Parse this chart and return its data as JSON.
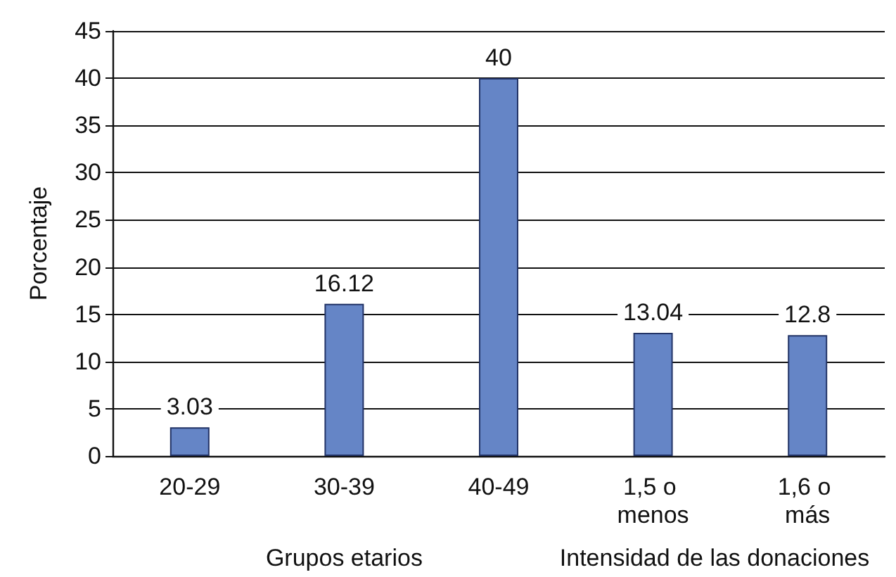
{
  "chart_data": {
    "type": "bar",
    "ylabel": "Porcentaje",
    "categories": [
      "20-29",
      "30-39",
      "40-49",
      "1,5 o menos",
      "1,6 o más"
    ],
    "values": [
      3.03,
      16.12,
      40,
      13.04,
      12.8
    ],
    "color": "#6585c6",
    "ylim": [
      0,
      45
    ],
    "yticks": [
      0,
      5,
      10,
      15,
      20,
      25,
      30,
      35,
      40,
      45
    ],
    "grid": "y",
    "data_labels": true,
    "annotations": [
      "Grupos etarios",
      "Intensidad de las donaciones"
    ]
  }
}
